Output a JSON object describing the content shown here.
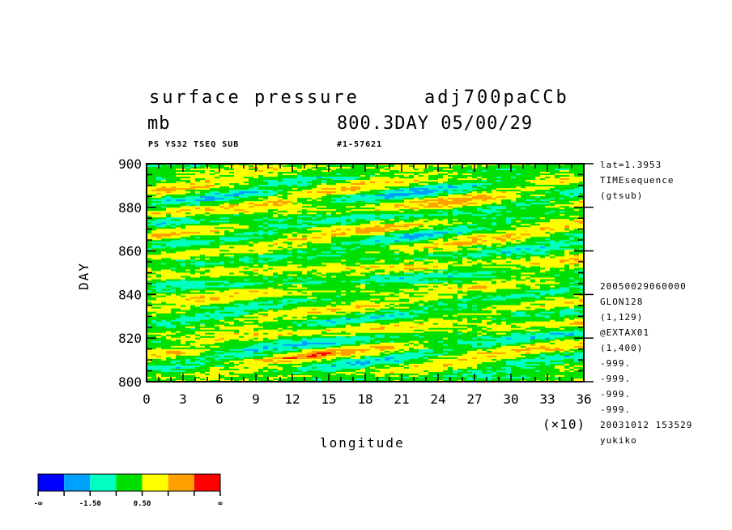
{
  "header": {
    "title_left": "surface pressure",
    "title_right": "adj700paCCb",
    "unit": "mb",
    "time_label": "800.3DAY 05/00/29",
    "info_left": "PS YS32 TSEQ SUB",
    "info_right": "#1-57621"
  },
  "side_info_top": [
    "lat=1.3953",
    "TIMEsequence",
    "(gtsub)"
  ],
  "side_info_bottom": [
    "20050029060000",
    "GLON128",
    "(1,129)",
    "@EXTAX01",
    "(1,400)",
    "-999.",
    "-999.",
    "-999.",
    "-999.",
    "20031012 153529",
    "yukiko"
  ],
  "chart_data": {
    "type": "heatmap",
    "title": "surface pressure",
    "xlabel": "longitude",
    "x_multiplier": "(×10)",
    "ylabel": "DAY",
    "xlim": [
      0,
      36
    ],
    "ylim": [
      800,
      900
    ],
    "x_ticks": [
      "0",
      "3",
      "6",
      "9",
      "12",
      "15",
      "18",
      "21",
      "24",
      "27",
      "30",
      "33",
      "36"
    ],
    "y_ticks": [
      "800",
      "820",
      "840",
      "860",
      "880",
      "900"
    ],
    "colorbar": {
      "colors": [
        "#0000ff",
        "#00a0ff",
        "#00ffc0",
        "#00e000",
        "#ffff00",
        "#ffa000",
        "#ff0000"
      ],
      "labels": [
        "-∞",
        "-1.50",
        "0.50",
        "∞"
      ]
    }
  }
}
